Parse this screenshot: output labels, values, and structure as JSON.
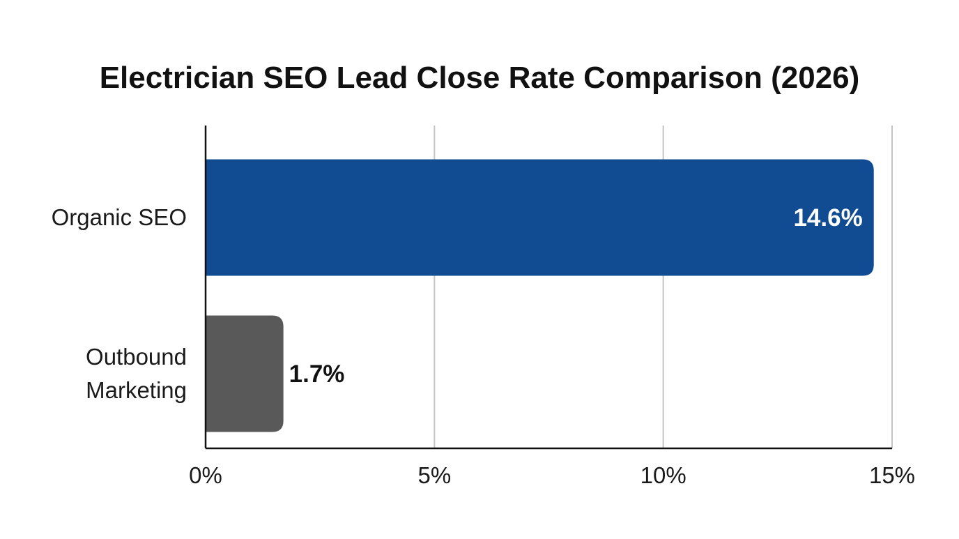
{
  "chart_data": {
    "type": "bar",
    "orientation": "horizontal",
    "title": "Electrician SEO Lead Close Rate Comparison (2026)",
    "xlabel": "",
    "ylabel": "",
    "categories": [
      [
        "Organic SEO"
      ],
      [
        "Outbound",
        "Marketing"
      ]
    ],
    "values": [
      14.6,
      1.7
    ],
    "value_labels": [
      "14.6%",
      "1.7%"
    ],
    "bar_colors": [
      "#114c92",
      "#595959"
    ],
    "value_label_colors": [
      "#ffffff",
      "#111111"
    ],
    "value_label_position": [
      "inside-end",
      "outside-end"
    ],
    "xlim": [
      0,
      15
    ],
    "xticks": [
      0,
      5,
      10,
      15
    ],
    "xtick_labels": [
      "0%",
      "5%",
      "10%",
      "15%"
    ],
    "grid": "vertical",
    "legend": "none"
  }
}
